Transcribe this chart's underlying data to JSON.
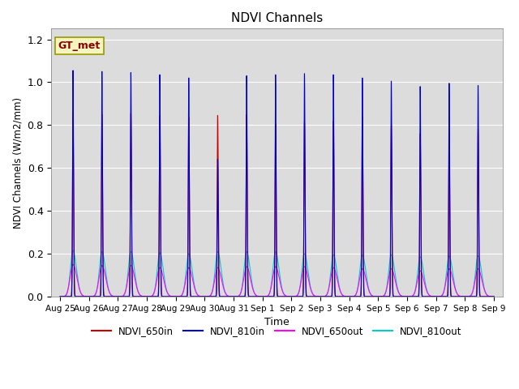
{
  "title": "NDVI Channels",
  "ylabel": "NDVI Channels (W/m2/mm)",
  "xlabel": "Time",
  "ylim": [
    0,
    1.25
  ],
  "bg_color": "#dcdcdc",
  "annotation": "GT_met",
  "annotation_color": "#8B0000",
  "annotation_bg": "#f5f5c0",
  "annotation_border": "#999900",
  "lines": {
    "NDVI_650in": {
      "color": "#cc0000",
      "lw": 0.8
    },
    "NDVI_810in": {
      "color": "#0000cc",
      "lw": 0.8
    },
    "NDVI_650out": {
      "color": "#ff00ff",
      "lw": 0.8
    },
    "NDVI_810out": {
      "color": "#00cccc",
      "lw": 0.8
    }
  },
  "num_days": 15,
  "peak_650in": [
    0.86,
    0.85,
    0.855,
    0.845,
    0.835,
    0.845,
    0.85,
    0.805,
    0.815,
    0.82,
    0.84,
    0.8,
    0.76,
    0.76,
    0.78
  ],
  "peak_810in": [
    1.055,
    1.05,
    1.045,
    1.035,
    1.02,
    0.64,
    1.03,
    1.035,
    1.04,
    1.035,
    1.02,
    1.005,
    0.98,
    0.995,
    0.985
  ],
  "peak_650out": [
    0.15,
    0.145,
    0.145,
    0.135,
    0.135,
    0.135,
    0.14,
    0.14,
    0.14,
    0.135,
    0.13,
    0.13,
    0.12,
    0.13,
    0.13
  ],
  "peak_810out": [
    0.215,
    0.21,
    0.21,
    0.205,
    0.2,
    0.21,
    0.21,
    0.21,
    0.2,
    0.195,
    0.195,
    0.195,
    0.185,
    0.19,
    0.19
  ],
  "xtick_labels": [
    "Aug 25",
    "Aug 26",
    "Aug 27",
    "Aug 28",
    "Aug 29",
    "Aug 30",
    "Aug 31",
    "Sep 1",
    "Sep 2",
    "Sep 3",
    "Sep 4",
    "Sep 5",
    "Sep 6",
    "Sep 7",
    "Sep 8",
    "Sep 9"
  ],
  "xtick_positions": [
    0,
    1,
    2,
    3,
    4,
    5,
    6,
    7,
    8,
    9,
    10,
    11,
    12,
    13,
    14,
    15
  ]
}
